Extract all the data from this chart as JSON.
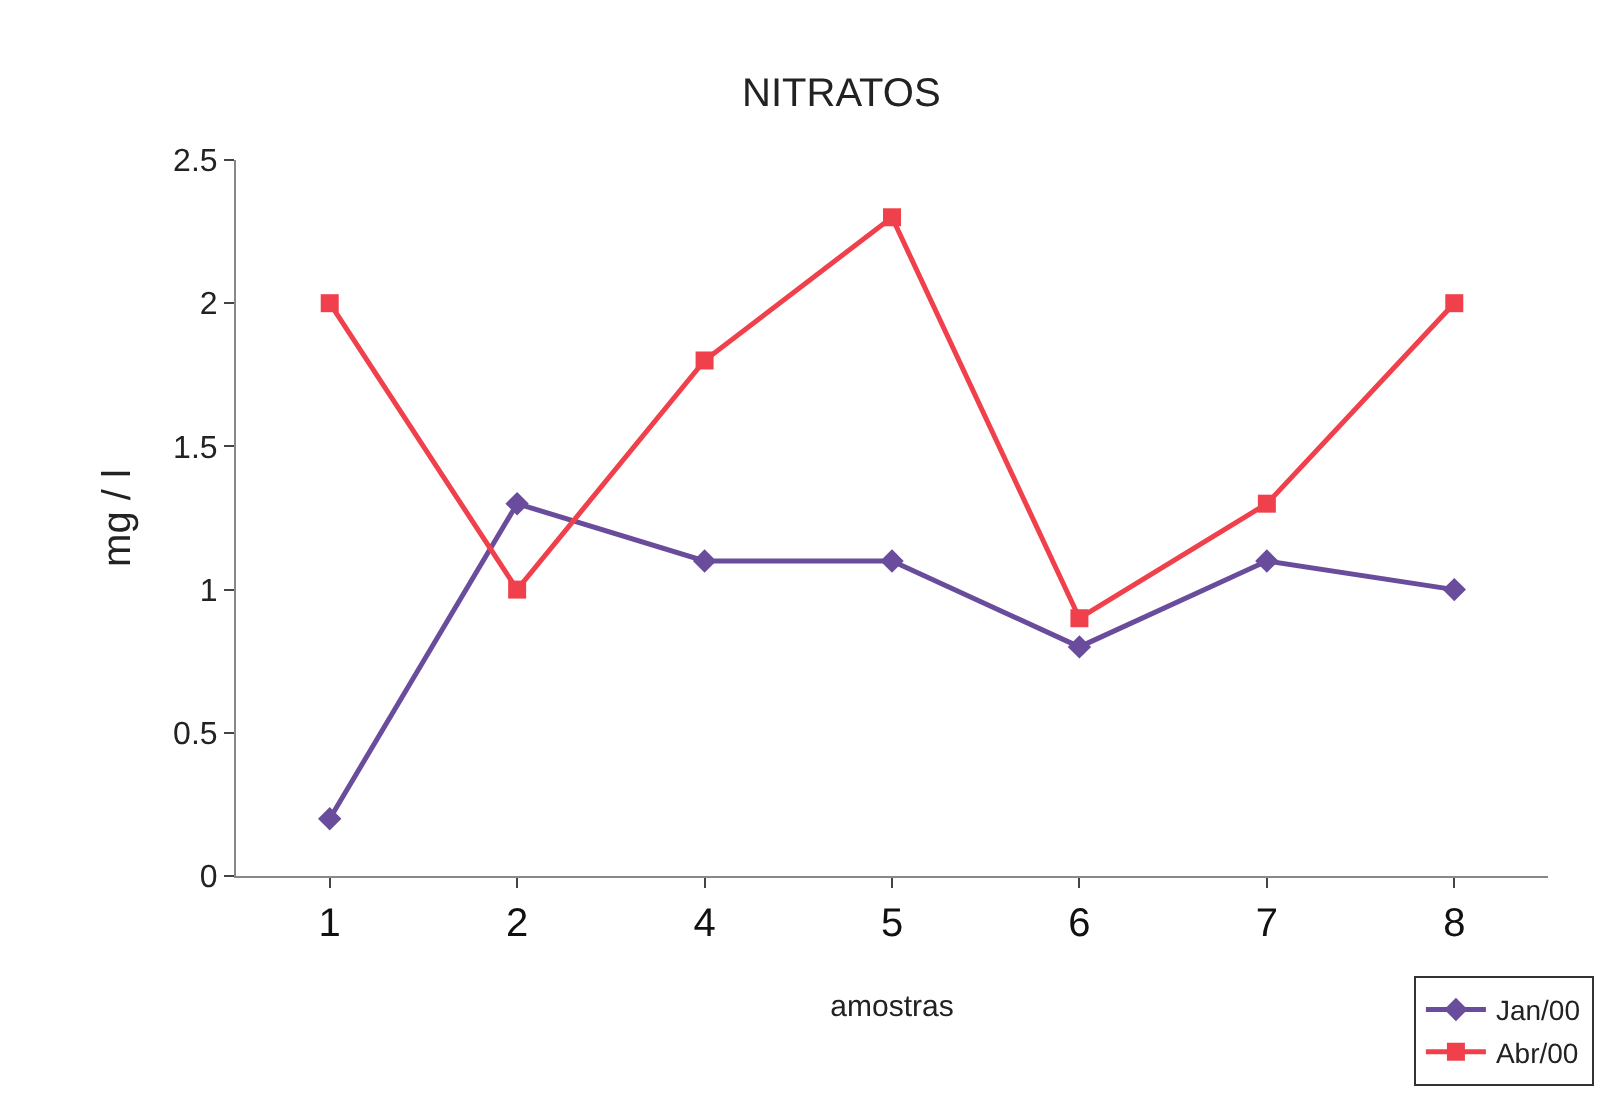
{
  "chart_data": {
    "type": "line",
    "title": "NITRATOS",
    "xlabel": "amostras",
    "ylabel": "mg / l",
    "categories": [
      "1",
      "2",
      "4",
      "5",
      "6",
      "7",
      "8"
    ],
    "series": [
      {
        "name": "Jan/00",
        "color": "#6a4c9c",
        "marker": "diamond",
        "values": [
          0.2,
          1.3,
          1.1,
          1.1,
          0.8,
          1.1,
          1.0
        ]
      },
      {
        "name": "Abr/00",
        "color": "#f0404c",
        "marker": "square",
        "values": [
          2.0,
          1.0,
          1.8,
          2.3,
          0.9,
          1.3,
          2.0
        ]
      }
    ],
    "ylim": [
      0,
      2.5
    ],
    "yticks": [
      0,
      0.5,
      1,
      1.5,
      2,
      2.5
    ],
    "legend": "bottom right",
    "line_style": "solid"
  }
}
